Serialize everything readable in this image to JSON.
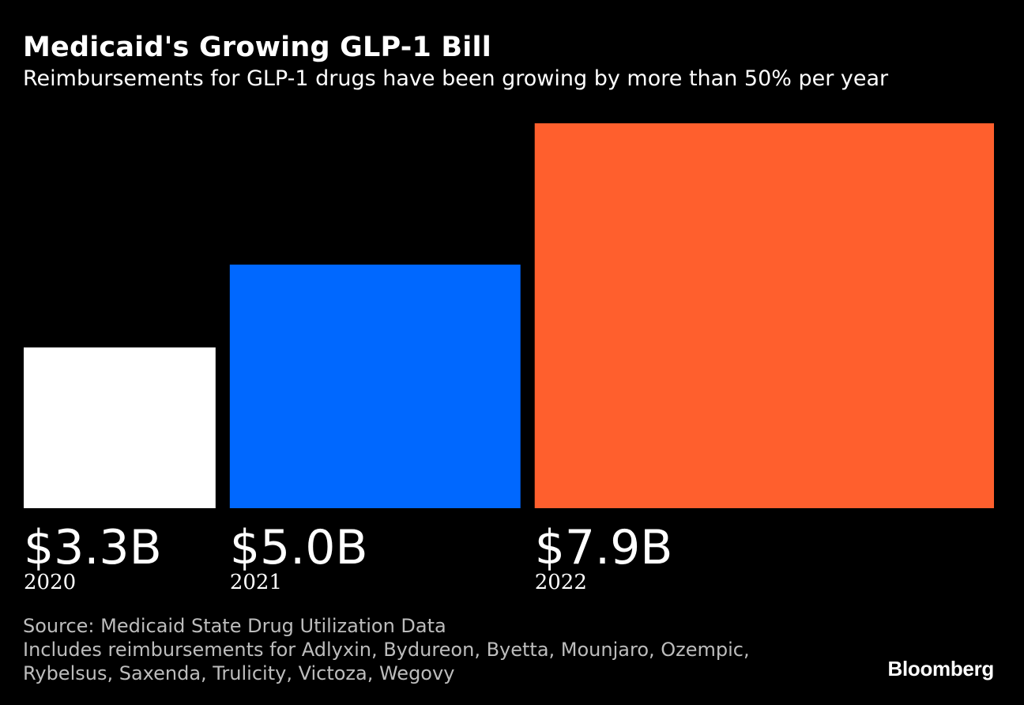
{
  "chart_data": {
    "type": "bar",
    "title": "Medicaid's Growing GLP-1 Bill",
    "subtitle": "Reimbursements for GLP-1 drugs have been growing by more than 50% per year",
    "categories": [
      "2020",
      "2021",
      "2022"
    ],
    "values": [
      3.3,
      5.0,
      7.9
    ],
    "value_labels": [
      "$3.3B",
      "$5.0B",
      "$7.9B"
    ],
    "colors": [
      "#ffffff",
      "#0068ff",
      "#ff5f2d"
    ],
    "ylim": [
      0,
      7.9
    ],
    "grid": false,
    "xlabel": "",
    "ylabel": ""
  },
  "footer": {
    "source": "Source: Medicaid State Drug Utilization Data",
    "note_line1": "Includes reimbursements for Adlyxin, Bydureon, Byetta, Mounjaro, Ozempic,",
    "note_line2": "Rybelsus, Saxenda, Trulicity, Victoza, Wegovy"
  },
  "brand": "Bloomberg"
}
